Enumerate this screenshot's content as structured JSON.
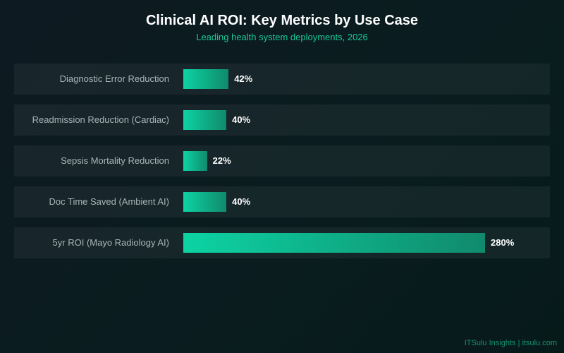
{
  "chart_data": {
    "type": "bar",
    "orientation": "horizontal",
    "title": "Clinical AI ROI: Key Metrics by Use Case",
    "subtitle": "Leading health system deployments, 2026",
    "categories": [
      "Diagnostic Error Reduction",
      "Readmission Reduction (Cardiac)",
      "Sepsis Mortality Reduction",
      "Doc Time Saved (Ambient AI)",
      "5yr ROI (Mayo Radiology AI)"
    ],
    "values": [
      42,
      40,
      22,
      40,
      280
    ],
    "value_labels": [
      "42%",
      "40%",
      "22%",
      "40%",
      "280%"
    ],
    "unit": "%",
    "xlim": [
      0,
      280
    ],
    "grid": false,
    "legend": "none",
    "colors": {
      "bar_start": "#0dd3a3",
      "bar_end": "#108a6c",
      "subtitle": "#19c79a"
    }
  },
  "footer": "ITSulu Insights | itsulu.com"
}
